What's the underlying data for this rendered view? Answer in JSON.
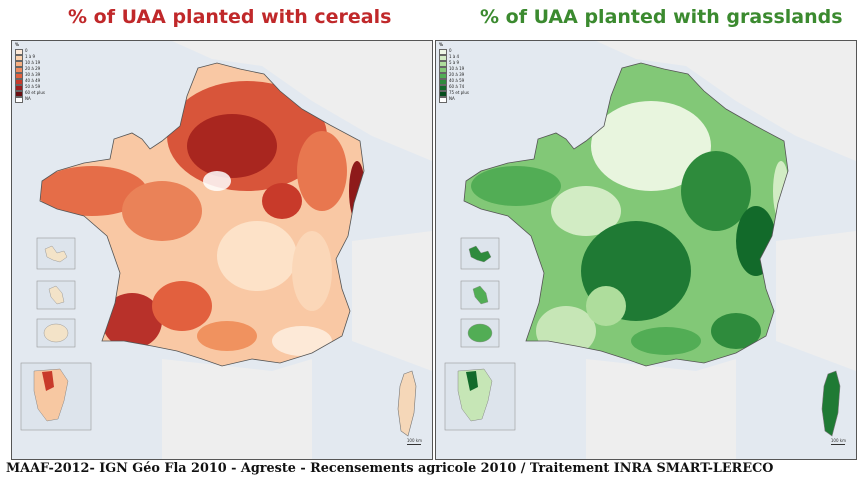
{
  "titles": {
    "left": "% of UAA planted with cereals",
    "right": "% of UAA planted with grasslands"
  },
  "footer": "MAAF-2012- IGN Géo Fla 2010 - Agreste - Recensements agricole 2010 / Traitement INRA SMART-LERECO",
  "colors": {
    "title_left": "#c0282a",
    "title_right": "#3b8a2f",
    "sea": "#e3e9f0",
    "neighbour_land": "#eeeeee",
    "cereals_ramp": [
      "#fde9d7",
      "#fbd0aa",
      "#f7b082",
      "#ef8a5e",
      "#e2603e",
      "#c83a2a",
      "#9e1d1d",
      "#6b0f12"
    ],
    "grassland_ramp": [
      "#eef7e6",
      "#d2ecc4",
      "#aedd9c",
      "#82c877",
      "#52ad55",
      "#2e8b3c",
      "#126a2a",
      "#064d1d"
    ]
  },
  "legends": {
    "left": {
      "title": "%",
      "labels": [
        "0",
        "1 à 9",
        "10 à 19",
        "20 à 29",
        "30 à 39",
        "40 à 49",
        "50 à 59",
        "60 et plus",
        "NA"
      ]
    },
    "right": {
      "title": "%",
      "labels": [
        "0",
        "1 à 4",
        "5 à 9",
        "10 à 19",
        "20 à 39",
        "40 à 59",
        "60 à 74",
        "75 et plus",
        "NA"
      ]
    }
  },
  "scale_label": "100 km"
}
